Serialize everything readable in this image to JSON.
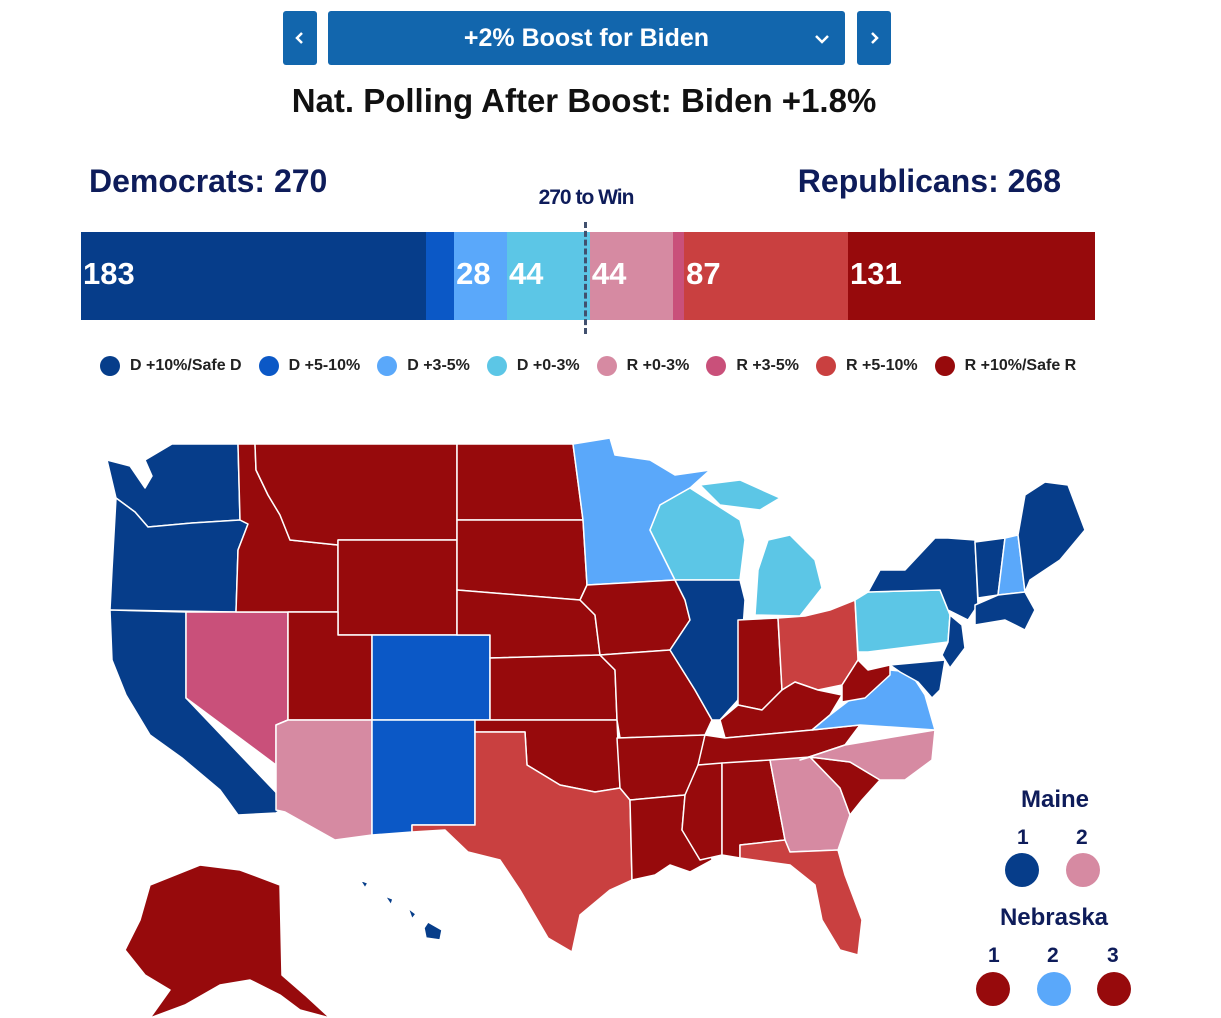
{
  "header": {
    "scenario_label": "+2% Boost for Biden",
    "polling_text": "Nat. Polling After Boost: Biden +1.8%"
  },
  "totals": {
    "democrats": "Democrats: 270",
    "republicans": "Republicans: 268",
    "win_label": "270 to Win"
  },
  "colors": {
    "d_safe": "#063d8a",
    "d_5_10": "#0b58c6",
    "d_3_5": "#5aa8fa",
    "d_0_3": "#5cc6e6",
    "r_0_3": "#d68aa2",
    "r_3_5": "#c9507a",
    "r_5_10": "#c94040",
    "r_safe": "#970a0c"
  },
  "chart_data": {
    "type": "bar",
    "total_electoral_votes": 538,
    "threshold": 270,
    "segments": [
      {
        "category": "D +10%/Safe D",
        "value": 183,
        "label": "183"
      },
      {
        "category": "D +5-10%",
        "value": 15,
        "label": ""
      },
      {
        "category": "D +3-5%",
        "value": 28,
        "label": "28"
      },
      {
        "category": "D +0-3%",
        "value": 44,
        "label": "44"
      },
      {
        "category": "R +0-3%",
        "value": 44,
        "label": "44"
      },
      {
        "category": "R +3-5%",
        "value": 6,
        "label": ""
      },
      {
        "category": "R +5-10%",
        "value": 87,
        "label": "87"
      },
      {
        "category": "R +10%/Safe R",
        "value": 131,
        "label": "131"
      }
    ]
  },
  "legend": [
    {
      "label": "D +10%/Safe D",
      "color": "#063d8a"
    },
    {
      "label": "D +5-10%",
      "color": "#0b58c6"
    },
    {
      "label": "D +3-5%",
      "color": "#5aa8fa"
    },
    {
      "label": "D +0-3%",
      "color": "#5cc6e6"
    },
    {
      "label": "R +0-3%",
      "color": "#d68aa2"
    },
    {
      "label": "R +3-5%",
      "color": "#c9507a"
    },
    {
      "label": "R +5-10%",
      "color": "#c94040"
    },
    {
      "label": "R +10%/Safe R",
      "color": "#970a0c"
    }
  ],
  "map": {
    "states": {
      "WA": "d_safe",
      "OR": "d_safe",
      "CA": "d_safe",
      "NV": "r_3_5",
      "ID": "r_safe",
      "MT": "r_safe",
      "WY": "r_safe",
      "UT": "r_safe",
      "AZ": "r_0_3",
      "CO": "d_5_10",
      "NM": "d_5_10",
      "ND": "r_safe",
      "SD": "r_safe",
      "NE": "r_safe",
      "KS": "r_safe",
      "OK": "r_safe",
      "TX": "r_5_10",
      "MN": "d_3_5",
      "IA": "r_safe",
      "MO": "r_safe",
      "AR": "r_safe",
      "LA": "r_safe",
      "WI": "d_0_3",
      "IL": "d_safe",
      "MI": "d_0_3",
      "IN": "r_safe",
      "OH": "r_5_10",
      "KY": "r_safe",
      "TN": "r_safe",
      "MS": "r_safe",
      "AL": "r_safe",
      "GA": "r_0_3",
      "FL": "r_5_10",
      "SC": "r_safe",
      "NC": "r_0_3",
      "VA": "d_3_5",
      "WV": "r_safe",
      "PA": "d_0_3",
      "NY": "d_safe",
      "VT": "d_safe",
      "NH": "d_3_5",
      "ME": "d_safe",
      "MA": "d_safe",
      "NJ": "d_safe",
      "MD": "d_safe",
      "AK": "r_safe",
      "HI": "d_safe"
    },
    "maine": {
      "title": "Maine",
      "districts": [
        {
          "label": "1",
          "color": "d_safe"
        },
        {
          "label": "2",
          "color": "r_0_3"
        }
      ]
    },
    "nebraska": {
      "title": "Nebraska",
      "districts": [
        {
          "label": "1",
          "color": "r_safe"
        },
        {
          "label": "2",
          "color": "d_3_5"
        },
        {
          "label": "3",
          "color": "r_safe"
        }
      ]
    }
  }
}
